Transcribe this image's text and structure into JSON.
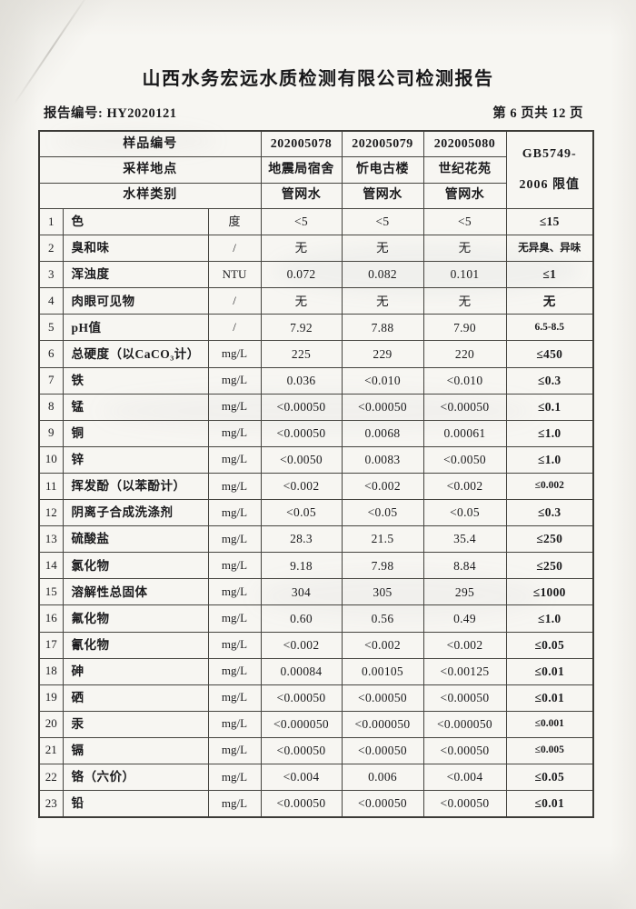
{
  "page": {
    "title": "山西水务宏远水质检测有限公司检测报告",
    "report_no": "报告编号: HY2020121",
    "page_indicator": "第 6 页共 12 页"
  },
  "colors": {
    "paper": "#f7f6f2",
    "ink": "#1b1b1d",
    "grid_line": "#45443f"
  },
  "table": {
    "header_rows": [
      {
        "label": "样品编号",
        "values": [
          "202005078",
          "202005079",
          "202005080"
        ]
      },
      {
        "label": "采样地点",
        "values": [
          "地震局宿舍",
          "忻电古楼",
          "世纪花苑"
        ]
      },
      {
        "label": "水样类别",
        "values": [
          "管网水",
          "管网水",
          "管网水"
        ]
      }
    ],
    "limit_header": [
      "GB5749-",
      "2006 限值"
    ],
    "rows": [
      {
        "no": "1",
        "param": "色",
        "unit": "度",
        "v": [
          "<5",
          "<5",
          "<5"
        ],
        "limit": "≤15"
      },
      {
        "no": "2",
        "param": "臭和味",
        "unit": "/",
        "v": [
          "无",
          "无",
          "无"
        ],
        "limit": "无异臭、异味"
      },
      {
        "no": "3",
        "param": "浑浊度",
        "unit": "NTU",
        "v": [
          "0.072",
          "0.082",
          "0.101"
        ],
        "limit": "≤1"
      },
      {
        "no": "4",
        "param": "肉眼可见物",
        "unit": "/",
        "v": [
          "无",
          "无",
          "无"
        ],
        "limit": "无"
      },
      {
        "no": "5",
        "param": "pH值",
        "unit": "/",
        "v": [
          "7.92",
          "7.88",
          "7.90"
        ],
        "limit": "6.5-8.5"
      },
      {
        "no": "6",
        "param": "总硬度（以CaCO₃计）",
        "unit": "mg/L",
        "v": [
          "225",
          "229",
          "220"
        ],
        "limit": "≤450"
      },
      {
        "no": "7",
        "param": "铁",
        "unit": "mg/L",
        "v": [
          "0.036",
          "<0.010",
          "<0.010"
        ],
        "limit": "≤0.3"
      },
      {
        "no": "8",
        "param": "锰",
        "unit": "mg/L",
        "v": [
          "<0.00050",
          "<0.00050",
          "<0.00050"
        ],
        "limit": "≤0.1"
      },
      {
        "no": "9",
        "param": "铜",
        "unit": "mg/L",
        "v": [
          "<0.00050",
          "0.0068",
          "0.00061"
        ],
        "limit": "≤1.0"
      },
      {
        "no": "10",
        "param": "锌",
        "unit": "mg/L",
        "v": [
          "<0.0050",
          "0.0083",
          "<0.0050"
        ],
        "limit": "≤1.0"
      },
      {
        "no": "11",
        "param": "挥发酚（以苯酚计）",
        "unit": "mg/L",
        "v": [
          "<0.002",
          "<0.002",
          "<0.002"
        ],
        "limit": "≤0.002"
      },
      {
        "no": "12",
        "param": "阴离子合成洗涤剂",
        "unit": "mg/L",
        "v": [
          "<0.05",
          "<0.05",
          "<0.05"
        ],
        "limit": "≤0.3"
      },
      {
        "no": "13",
        "param": "硫酸盐",
        "unit": "mg/L",
        "v": [
          "28.3",
          "21.5",
          "35.4"
        ],
        "limit": "≤250"
      },
      {
        "no": "14",
        "param": "氯化物",
        "unit": "mg/L",
        "v": [
          "9.18",
          "7.98",
          "8.84"
        ],
        "limit": "≤250"
      },
      {
        "no": "15",
        "param": "溶解性总固体",
        "unit": "mg/L",
        "v": [
          "304",
          "305",
          "295"
        ],
        "limit": "≤1000"
      },
      {
        "no": "16",
        "param": "氟化物",
        "unit": "mg/L",
        "v": [
          "0.60",
          "0.56",
          "0.49"
        ],
        "limit": "≤1.0"
      },
      {
        "no": "17",
        "param": "氰化物",
        "unit": "mg/L",
        "v": [
          "<0.002",
          "<0.002",
          "<0.002"
        ],
        "limit": "≤0.05"
      },
      {
        "no": "18",
        "param": "砷",
        "unit": "mg/L",
        "v": [
          "0.00084",
          "0.00105",
          "<0.00125"
        ],
        "limit": "≤0.01"
      },
      {
        "no": "19",
        "param": "硒",
        "unit": "mg/L",
        "v": [
          "<0.00050",
          "<0.00050",
          "<0.00050"
        ],
        "limit": "≤0.01"
      },
      {
        "no": "20",
        "param": "汞",
        "unit": "mg/L",
        "v": [
          "<0.000050",
          "<0.000050",
          "<0.000050"
        ],
        "limit": "≤0.001"
      },
      {
        "no": "21",
        "param": "镉",
        "unit": "mg/L",
        "v": [
          "<0.00050",
          "<0.00050",
          "<0.00050"
        ],
        "limit": "≤0.005"
      },
      {
        "no": "22",
        "param": "铬（六价）",
        "unit": "mg/L",
        "v": [
          "<0.004",
          "0.006",
          "<0.004"
        ],
        "limit": "≤0.05"
      },
      {
        "no": "23",
        "param": "铅",
        "unit": "mg/L",
        "v": [
          "<0.00050",
          "<0.00050",
          "<0.00050"
        ],
        "limit": "≤0.01"
      }
    ]
  }
}
